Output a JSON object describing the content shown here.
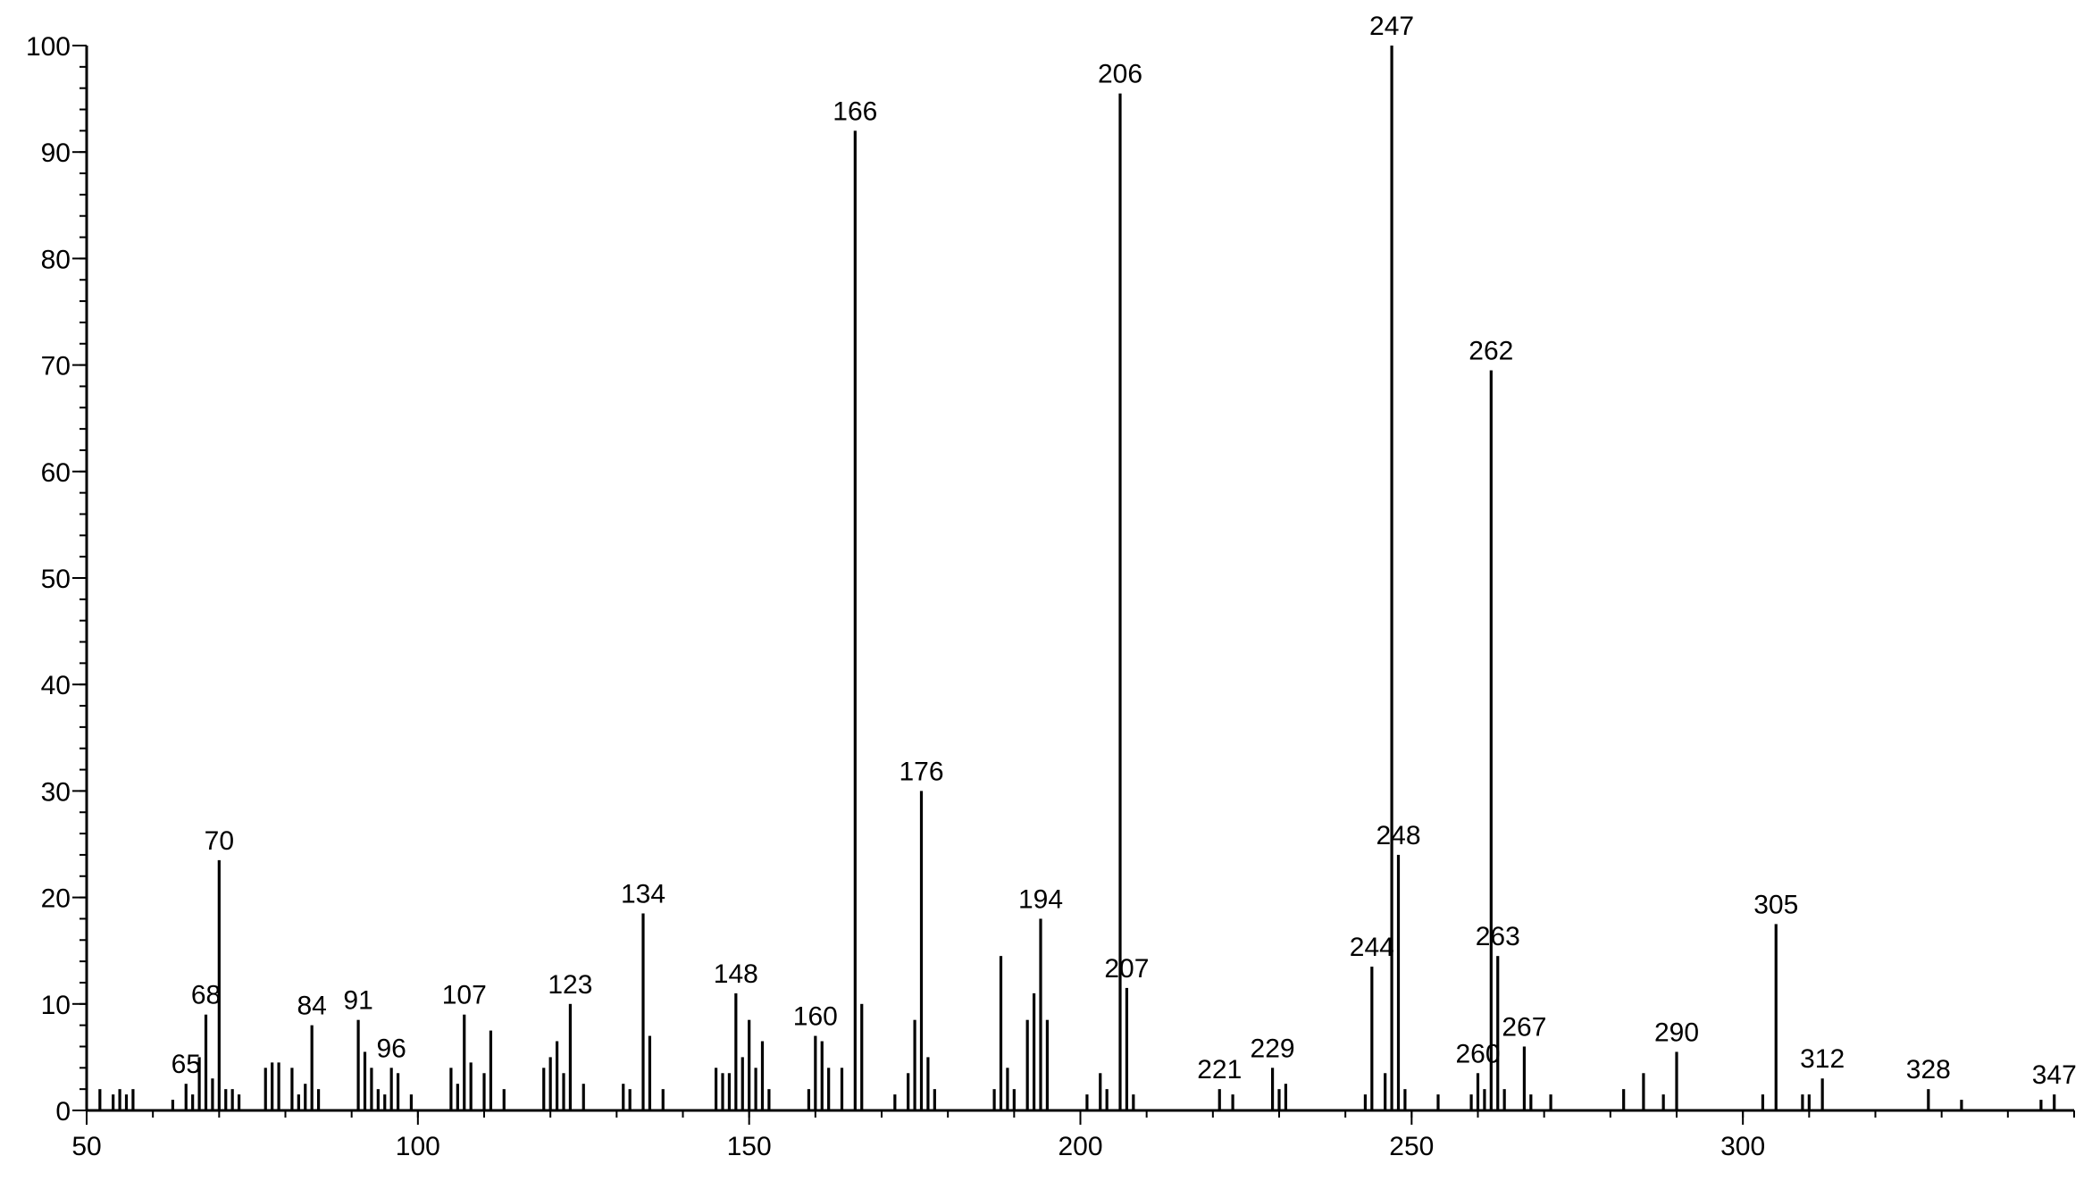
{
  "chart_data": {
    "type": "bar",
    "x": [
      52,
      54,
      55,
      56,
      57,
      63,
      65,
      66,
      67,
      68,
      69,
      70,
      71,
      72,
      73,
      77,
      78,
      79,
      81,
      82,
      83,
      84,
      85,
      91,
      92,
      93,
      94,
      95,
      96,
      97,
      99,
      105,
      106,
      107,
      108,
      110,
      111,
      113,
      119,
      120,
      121,
      122,
      123,
      125,
      131,
      132,
      134,
      135,
      137,
      145,
      146,
      147,
      148,
      149,
      150,
      151,
      152,
      153,
      159,
      160,
      161,
      162,
      164,
      166,
      167,
      172,
      174,
      175,
      176,
      177,
      178,
      187,
      188,
      189,
      190,
      192,
      193,
      194,
      195,
      201,
      203,
      204,
      206,
      207,
      208,
      221,
      223,
      229,
      230,
      231,
      243,
      244,
      246,
      247,
      248,
      249,
      254,
      259,
      260,
      261,
      262,
      263,
      264,
      267,
      268,
      271,
      282,
      285,
      288,
      290,
      303,
      305,
      309,
      310,
      312,
      328,
      333,
      345,
      347
    ],
    "values": [
      2,
      1.5,
      2,
      1.5,
      2,
      1,
      2.5,
      1.5,
      5,
      9,
      3,
      23.5,
      2,
      2,
      1.5,
      4,
      4.5,
      4.5,
      4,
      1.5,
      2.5,
      8,
      2,
      8.5,
      5.5,
      4,
      2,
      1.5,
      4,
      3.5,
      1.5,
      4,
      2.5,
      9,
      4.5,
      3.5,
      7.5,
      2,
      4,
      5,
      6.5,
      3.5,
      10,
      2.5,
      2.5,
      2,
      18.5,
      7,
      2,
      4,
      3.5,
      3.5,
      11,
      5,
      8.5,
      4,
      6.5,
      2,
      2,
      7,
      6.5,
      4,
      4,
      92,
      10,
      1.5,
      3.5,
      8.5,
      30,
      5,
      2,
      2,
      14.5,
      4,
      2,
      8.5,
      11,
      18,
      8.5,
      1.5,
      3.5,
      2,
      95.5,
      11.5,
      1.5,
      2,
      1.5,
      4,
      2,
      2.5,
      1.5,
      13.5,
      3.5,
      100,
      24,
      2,
      1.5,
      1.5,
      3.5,
      2,
      69.5,
      14.5,
      2,
      6,
      1.5,
      1.5,
      2,
      3.5,
      1.5,
      5.5,
      1.5,
      17.5,
      1.5,
      1.5,
      3,
      2,
      1,
      1,
      1.5
    ],
    "labels": [
      null,
      null,
      null,
      null,
      null,
      null,
      "65",
      null,
      null,
      "68",
      null,
      "70",
      null,
      null,
      null,
      null,
      null,
      null,
      null,
      null,
      null,
      "84",
      null,
      "91",
      null,
      null,
      null,
      null,
      "96",
      null,
      null,
      null,
      null,
      "107",
      null,
      null,
      null,
      null,
      null,
      null,
      null,
      null,
      "123",
      null,
      null,
      null,
      "134",
      null,
      null,
      null,
      null,
      null,
      "148",
      null,
      null,
      null,
      null,
      null,
      null,
      "160",
      null,
      null,
      null,
      "166",
      null,
      null,
      null,
      null,
      "176",
      null,
      null,
      null,
      null,
      null,
      null,
      null,
      null,
      "194",
      null,
      null,
      null,
      null,
      "206",
      "207",
      null,
      "221",
      null,
      "229",
      null,
      null,
      null,
      "244",
      null,
      "247",
      "248",
      null,
      null,
      null,
      "260",
      null,
      "262",
      "263",
      null,
      "267",
      null,
      null,
      null,
      null,
      null,
      "290",
      null,
      "305",
      null,
      null,
      "312",
      "328",
      null,
      null,
      "347"
    ],
    "color": "#000000",
    "xlim": [
      50,
      350
    ],
    "xticks": [
      50,
      100,
      150,
      200,
      250,
      300
    ],
    "ylim": [
      0,
      100
    ],
    "yticks": [
      0,
      10,
      20,
      30,
      40,
      50,
      60,
      70,
      80,
      90,
      100
    ],
    "grid": false
  }
}
